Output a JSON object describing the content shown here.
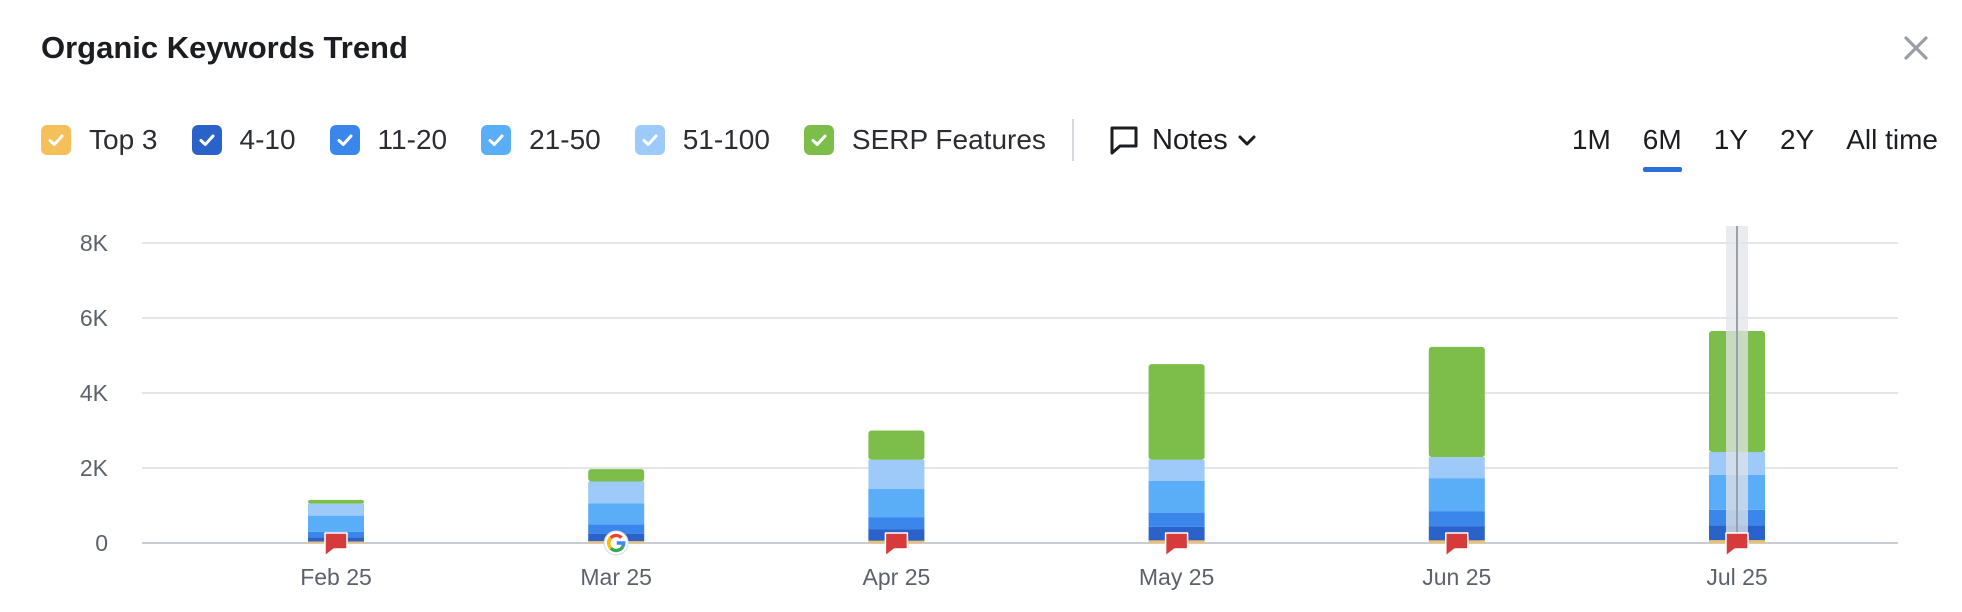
{
  "header": {
    "title": "Organic Keywords Trend"
  },
  "legend": [
    {
      "key": "top3",
      "label": "Top 3",
      "color": "#f5c05a",
      "checked": true
    },
    {
      "key": "r4_10",
      "label": "4-10",
      "color": "#2a62c9",
      "checked": true
    },
    {
      "key": "r11_20",
      "label": "11-20",
      "color": "#3b86ea",
      "checked": true
    },
    {
      "key": "r21_50",
      "label": "21-50",
      "color": "#5aadf7",
      "checked": true
    },
    {
      "key": "r51_100",
      "label": "51-100",
      "color": "#9dcaf8",
      "checked": true
    },
    {
      "key": "serp",
      "label": "SERP Features",
      "color": "#7dbd4a",
      "checked": true
    }
  ],
  "notes": {
    "label": "Notes",
    "icon": "comment-icon"
  },
  "periods": [
    {
      "label": "1M",
      "active": false
    },
    {
      "label": "6M",
      "active": true
    },
    {
      "label": "1Y",
      "active": false
    },
    {
      "label": "2Y",
      "active": false
    },
    {
      "label": "All time",
      "active": false
    }
  ],
  "chart_data": {
    "type": "bar",
    "stacked": true,
    "categories": [
      "Feb 25",
      "Mar 25",
      "Apr 25",
      "May 25",
      "Jun 25",
      "Jul 25"
    ],
    "series": [
      {
        "name": "Top 3",
        "color": "#f5c05a",
        "values": [
          40,
          50,
          60,
          70,
          70,
          75
        ]
      },
      {
        "name": "4-10",
        "color": "#2a62c9",
        "values": [
          110,
          200,
          300,
          360,
          380,
          390
        ]
      },
      {
        "name": "11-20",
        "color": "#3b86ea",
        "values": [
          150,
          250,
          330,
          380,
          400,
          420
        ]
      },
      {
        "name": "21-50",
        "color": "#5aadf7",
        "values": [
          430,
          560,
          750,
          850,
          880,
          930
        ]
      },
      {
        "name": "51-100",
        "color": "#9dcaf8",
        "values": [
          320,
          580,
          780,
          560,
          560,
          610
        ]
      },
      {
        "name": "SERP Features",
        "color": "#7dbd4a",
        "values": [
          100,
          330,
          780,
          2550,
          2940,
          3230
        ]
      }
    ],
    "ylim": [
      0,
      8000
    ],
    "yticks": [
      0,
      2000,
      4000,
      6000,
      8000
    ],
    "ytick_labels": [
      "0",
      "2K",
      "4K",
      "6K",
      "8K"
    ],
    "grid": true,
    "highlighted_category": "Jul 25",
    "markers": [
      {
        "category": "Feb 25",
        "icon": "red-flag-icon"
      },
      {
        "category": "Mar 25",
        "icon": "google-icon"
      },
      {
        "category": "Apr 25",
        "icon": "red-flag-icon"
      },
      {
        "category": "May 25",
        "icon": "red-flag-icon"
      },
      {
        "category": "Jun 25",
        "icon": "red-flag-icon"
      },
      {
        "category": "Jul 25",
        "icon": "red-flag-icon"
      }
    ]
  }
}
